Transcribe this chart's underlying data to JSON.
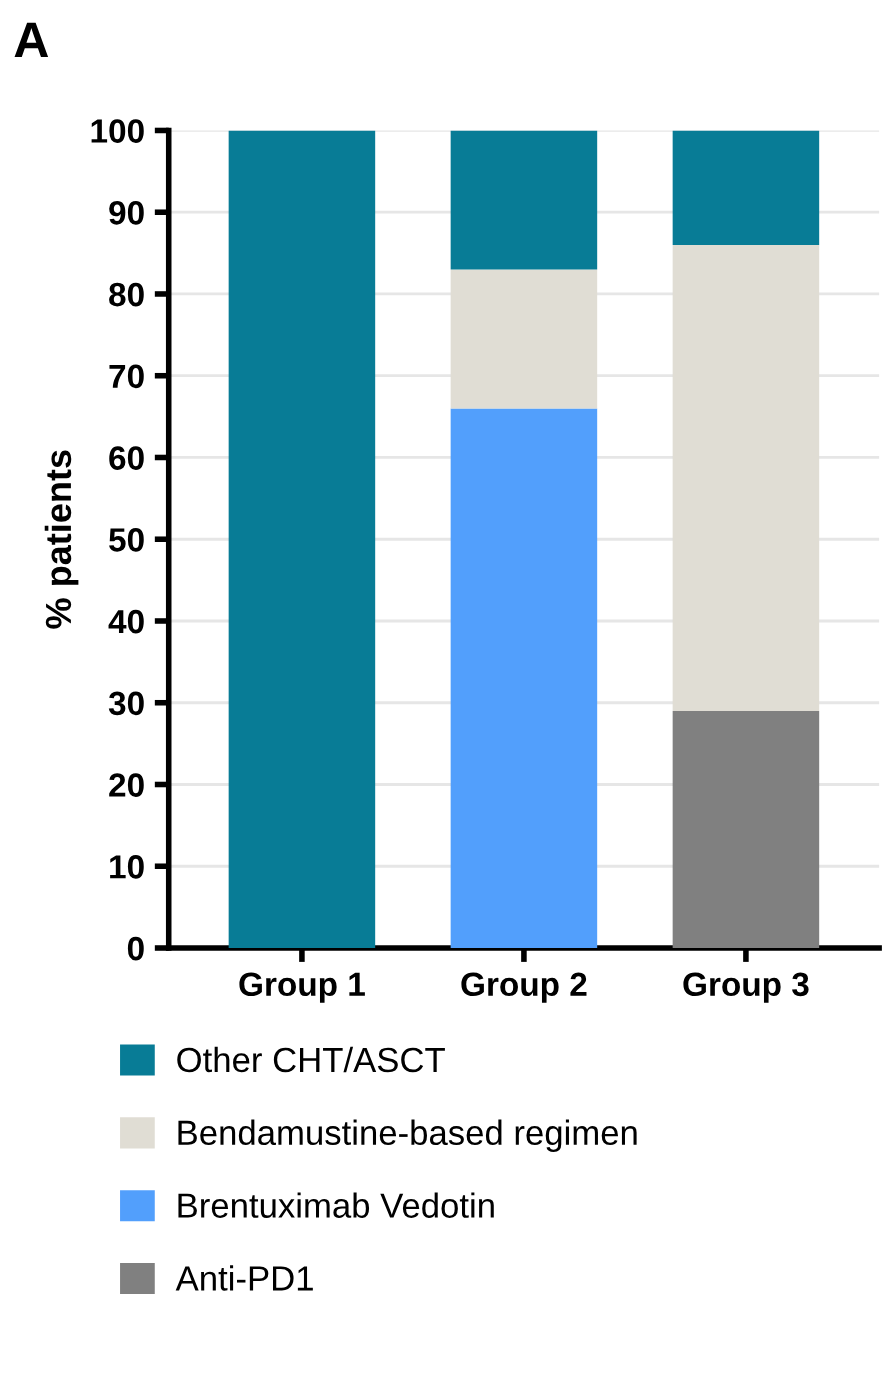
{
  "chart_data": {
    "type": "bar",
    "title": "A",
    "ylabel": "% patients",
    "categories": [
      "Group 1",
      "Group 2",
      "Group 3"
    ],
    "stacked": true,
    "series": [
      {
        "name": "Anti-PD1",
        "color": "#808080",
        "values": [
          0,
          0,
          29
        ]
      },
      {
        "name": "Brentuximab Vedotin",
        "color": "#529ffc",
        "values": [
          0,
          66,
          0
        ]
      },
      {
        "name": "Bendamustine-based regimen",
        "color": "#e0ddd4",
        "values": [
          0,
          17,
          57
        ]
      },
      {
        "name": "Other CHT/ASCT",
        "color": "#087c96",
        "values": [
          100,
          17,
          14
        ]
      }
    ],
    "ylim": [
      0,
      100
    ],
    "yticks": [
      0,
      10,
      20,
      30,
      40,
      50,
      60,
      70,
      80,
      90,
      100
    ],
    "grid": "y",
    "legend": "bottom"
  }
}
